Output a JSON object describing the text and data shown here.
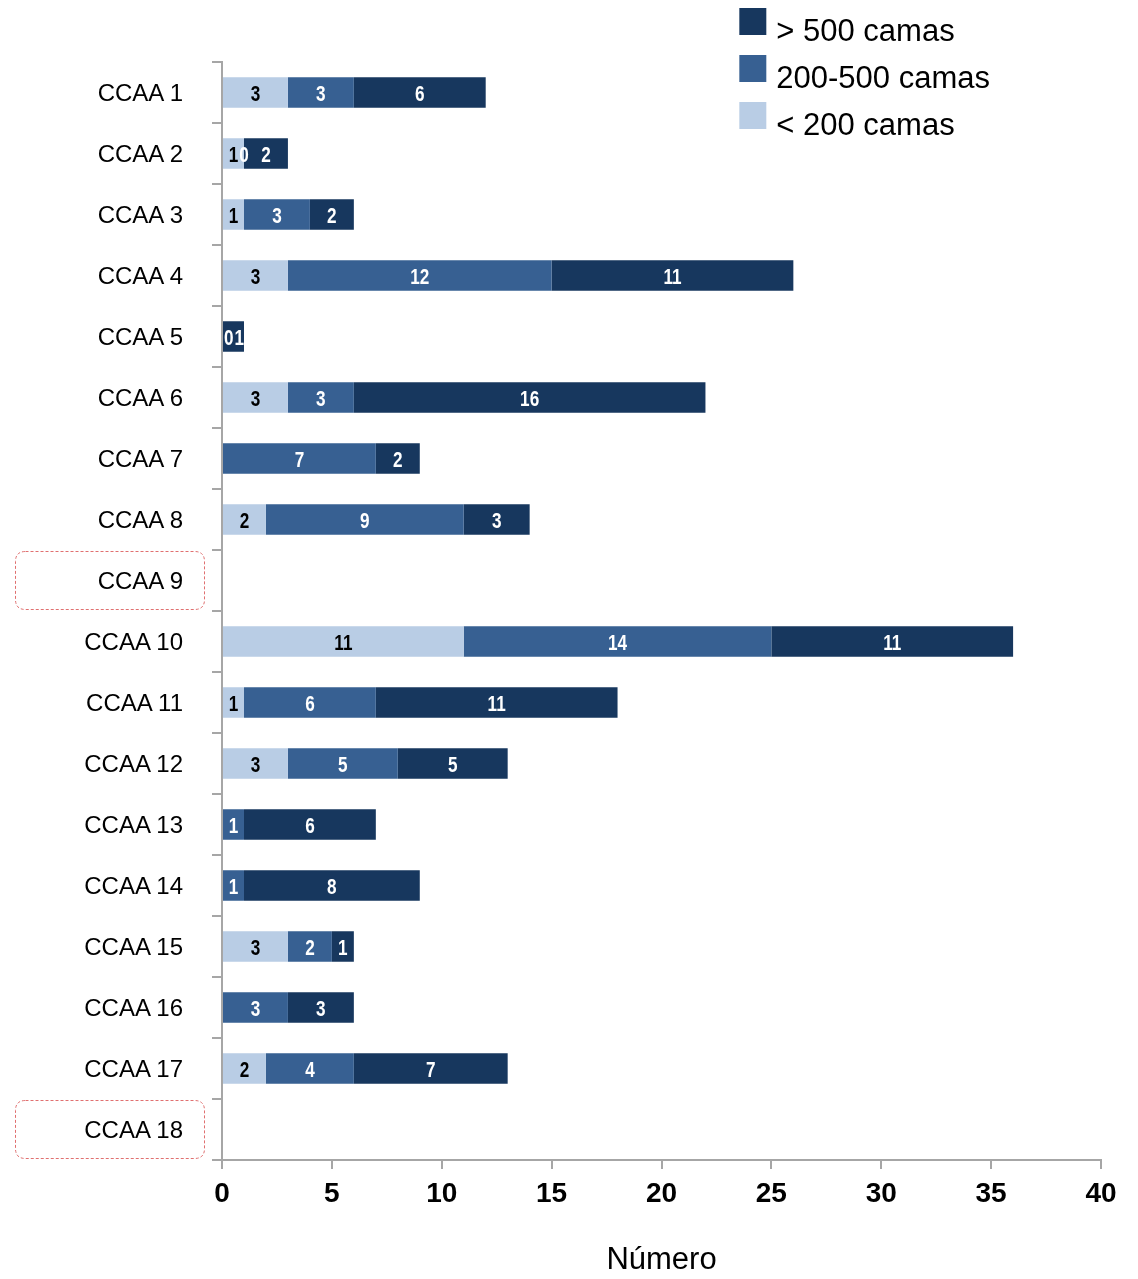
{
  "chart_data": {
    "type": "bar",
    "orientation": "horizontal",
    "stacked": true,
    "xlabel": "Número",
    "categories": [
      "CCAA 1",
      "CCAA 2",
      "CCAA 3",
      "CCAA 4",
      "CCAA 5",
      "CCAA 6",
      "CCAA 7",
      "CCAA 8",
      "CCAA 9",
      "CCAA 10",
      "CCAA 11",
      "CCAA 12",
      "CCAA 13",
      "CCAA 14",
      "CCAA 15",
      "CCAA 16",
      "CCAA 17",
      "CCAA 18"
    ],
    "series": [
      {
        "name": "< 200 camas",
        "color": "#b9cde5",
        "values": [
          3,
          1,
          1,
          3,
          null,
          3,
          null,
          2,
          null,
          11,
          1,
          3,
          null,
          null,
          3,
          null,
          2,
          null
        ]
      },
      {
        "name": "200-500 camas",
        "color": "#376092",
        "values": [
          3,
          0,
          3,
          12,
          0,
          3,
          7,
          9,
          null,
          14,
          6,
          5,
          1,
          1,
          2,
          3,
          4,
          null
        ]
      },
      {
        "name": "> 500 camas",
        "color": "#17375e",
        "values": [
          6,
          2,
          2,
          11,
          1,
          16,
          2,
          3,
          null,
          11,
          11,
          5,
          6,
          8,
          1,
          3,
          7,
          null
        ]
      }
    ],
    "xlim": [
      0,
      40
    ],
    "xticks": [
      0,
      5,
      10,
      15,
      20,
      25,
      30,
      35,
      40
    ],
    "grid": false,
    "legend": "top right",
    "data_labels": true
  }
}
